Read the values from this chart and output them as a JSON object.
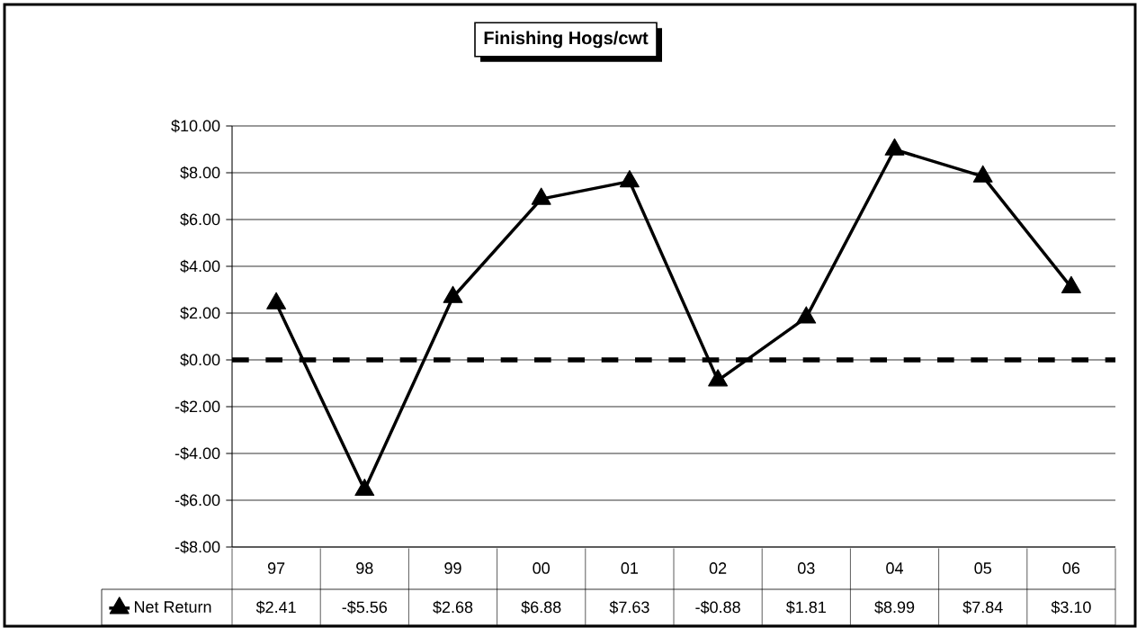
{
  "chart_data": {
    "type": "line",
    "title": "Finishing Hogs/cwt",
    "categories": [
      "97",
      "98",
      "99",
      "00",
      "01",
      "02",
      "03",
      "04",
      "05",
      "06"
    ],
    "series": [
      {
        "name": "Net Return",
        "color": "#000000",
        "values": [
          2.41,
          -5.56,
          2.68,
          6.88,
          7.63,
          -0.88,
          1.81,
          8.99,
          7.84,
          3.1
        ],
        "value_labels": [
          "$2.41",
          "-$5.56",
          "$2.68",
          "$6.88",
          "$7.63",
          "-$0.88",
          "$1.81",
          "$8.99",
          "$7.84",
          "$3.10"
        ]
      }
    ],
    "ylim": [
      -8,
      10
    ],
    "yticks": [
      {
        "value": -8,
        "label": "-$8.00"
      },
      {
        "value": -6,
        "label": "-$6.00"
      },
      {
        "value": -4,
        "label": "-$4.00"
      },
      {
        "value": -2,
        "label": "-$2.00"
      },
      {
        "value": 0,
        "label": "$0.00"
      },
      {
        "value": 2,
        "label": "$2.00"
      },
      {
        "value": 4,
        "label": "$4.00"
      },
      {
        "value": 6,
        "label": "$6.00"
      },
      {
        "value": 8,
        "label": "$8.00"
      },
      {
        "value": 10,
        "label": "$10.00"
      }
    ],
    "ref_lines": [
      {
        "axis": "y",
        "value": 0,
        "line_style": "dashed",
        "color": "#000000"
      }
    ],
    "grid": "y",
    "legend": "bottom",
    "marker": "triangle",
    "line_style": "solid"
  }
}
